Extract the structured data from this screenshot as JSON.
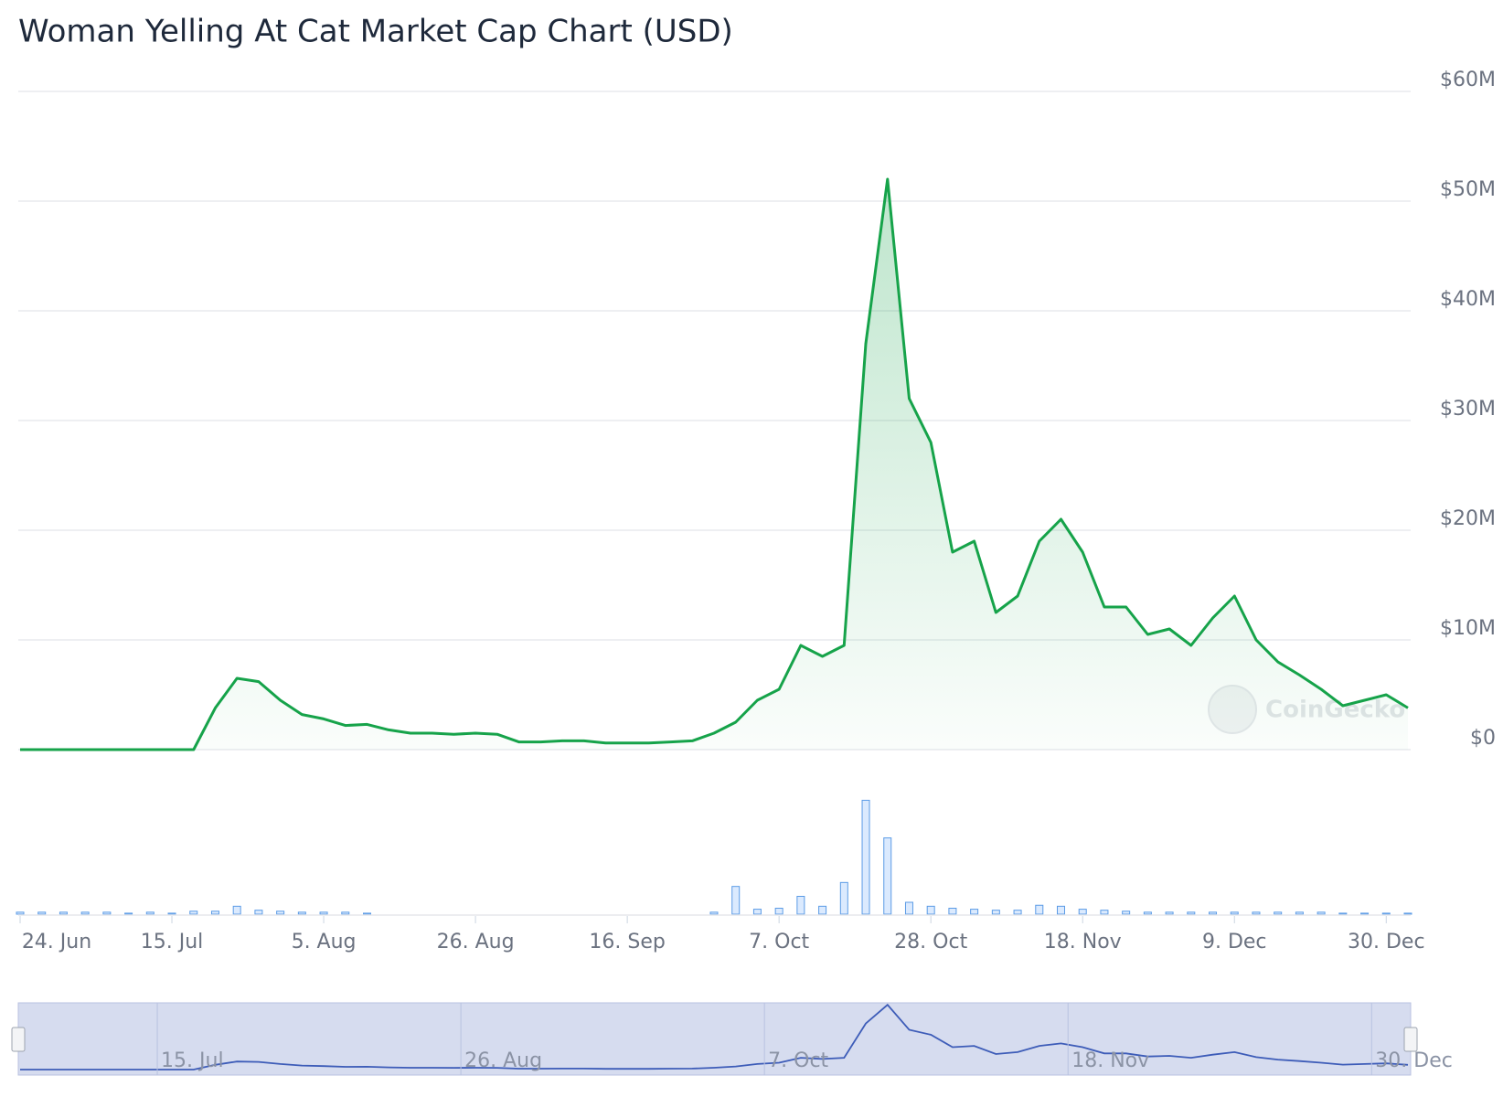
{
  "chart_data": {
    "type": "area-line",
    "title": "Woman Yelling At Cat Market Cap Chart (USD)",
    "watermark": "CoinGecko",
    "categories": [
      "24. Jun",
      null,
      null,
      null,
      null,
      null,
      null,
      "15. Jul",
      null,
      null,
      null,
      null,
      null,
      null,
      "5. Aug",
      null,
      null,
      null,
      null,
      null,
      null,
      "26. Aug",
      null,
      null,
      null,
      null,
      null,
      null,
      "16. Sep",
      null,
      null,
      null,
      null,
      null,
      null,
      "7. Oct",
      null,
      null,
      null,
      null,
      null,
      null,
      "28. Oct",
      null,
      null,
      null,
      null,
      null,
      null,
      "18. Nov",
      null,
      null,
      null,
      null,
      null,
      null,
      "9. Dec",
      null,
      null,
      null,
      null,
      null,
      null,
      "30. Dec",
      null
    ],
    "series": [
      {
        "name": "Market Cap",
        "color": "#16a34a",
        "values": [
          0,
          0,
          0,
          0,
          0,
          0,
          0,
          0,
          0,
          3800000,
          6500000,
          6200000,
          4500000,
          3200000,
          2800000,
          2200000,
          2300000,
          1800000,
          1500000,
          1500000,
          1400000,
          1500000,
          1400000,
          700000,
          700000,
          800000,
          800000,
          600000,
          600000,
          600000,
          700000,
          800000,
          1500000,
          2500000,
          4500000,
          5500000,
          9500000,
          8500000,
          9500000,
          37000000,
          52000000,
          32000000,
          28000000,
          18000000,
          19000000,
          12500000,
          14000000,
          19000000,
          21000000,
          18000000,
          13000000,
          13000000,
          10500000,
          11000000,
          9500000,
          12000000,
          14000000,
          10000000,
          8000000,
          6800000,
          5500000,
          4000000,
          4500000,
          5000000,
          3800000
        ]
      }
    ],
    "volume": {
      "color": "#5b9be6",
      "values": [
        2,
        2,
        2,
        2,
        2,
        1,
        2,
        1,
        3,
        3,
        8,
        4,
        3,
        2,
        2,
        2,
        1,
        0,
        0,
        0,
        0,
        0,
        0,
        0,
        0,
        0,
        0,
        0,
        0,
        0,
        0,
        0,
        2,
        28,
        5,
        6,
        18,
        8,
        32,
        115,
        77,
        12,
        8,
        6,
        5,
        4,
        4,
        9,
        8,
        5,
        4,
        3,
        2,
        2,
        2,
        2,
        2,
        2,
        2,
        2,
        2,
        1,
        1,
        1,
        1
      ],
      "ylim": [
        0,
        120
      ]
    },
    "ylim": [
      0,
      60000000
    ],
    "yticks": [
      {
        "value": 0,
        "label": "$0"
      },
      {
        "value": 10000000,
        "label": "$10M"
      },
      {
        "value": 20000000,
        "label": "$20M"
      },
      {
        "value": 30000000,
        "label": "$30M"
      },
      {
        "value": 40000000,
        "label": "$40M"
      },
      {
        "value": 50000000,
        "label": "$50M"
      },
      {
        "value": 60000000,
        "label": "$60M"
      }
    ],
    "grid": true
  }
}
